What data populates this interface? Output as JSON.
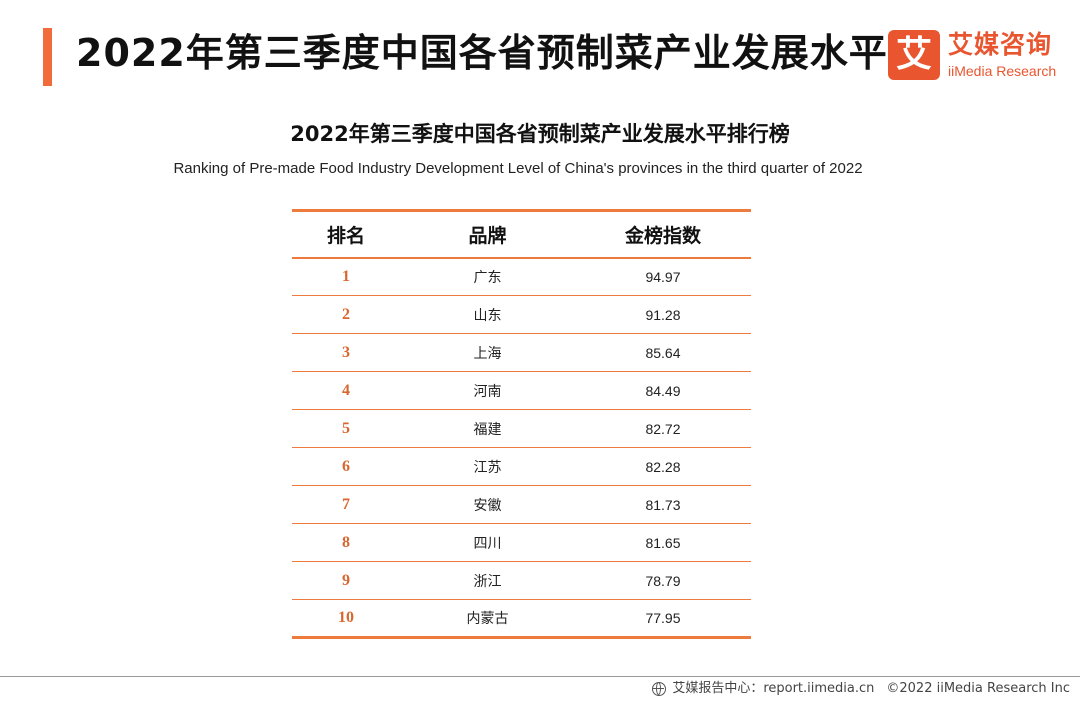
{
  "header": {
    "title": "2022年第三季度中国各省预制菜产业发展水平"
  },
  "logo": {
    "mark": "艾",
    "name_cn": "艾媒咨询",
    "name_en": "iiMedia Research"
  },
  "table": {
    "title": "2022年第三季度中国各省预制菜产业发展水平排行榜",
    "subtitle": "Ranking of Pre-made Food Industry Development Level of China's provinces in the third quarter of 2022",
    "headers": {
      "rank": "排名",
      "brand": "品牌",
      "index": "金榜指数"
    },
    "rows": [
      {
        "rank": "1",
        "brand": "广东",
        "index": "94.97"
      },
      {
        "rank": "2",
        "brand": "山东",
        "index": "91.28"
      },
      {
        "rank": "3",
        "brand": "上海",
        "index": "85.64"
      },
      {
        "rank": "4",
        "brand": "河南",
        "index": "84.49"
      },
      {
        "rank": "5",
        "brand": "福建",
        "index": "82.72"
      },
      {
        "rank": "6",
        "brand": "江苏",
        "index": "82.28"
      },
      {
        "rank": "7",
        "brand": "安徽",
        "index": "81.73"
      },
      {
        "rank": "8",
        "brand": "四川",
        "index": "81.65"
      },
      {
        "rank": "9",
        "brand": "浙江",
        "index": "78.79"
      },
      {
        "rank": "10",
        "brand": "内蒙古",
        "index": "77.95"
      }
    ]
  },
  "footer": {
    "source": "艾媒报告中心：report.iimedia.cn",
    "copyright": "©2022  iiMedia Research  Inc"
  },
  "colors": {
    "accent": "#f26b3a",
    "table_border": "#ee7a3e",
    "rank_text": "#d8672f",
    "brand": "#e8552e"
  }
}
